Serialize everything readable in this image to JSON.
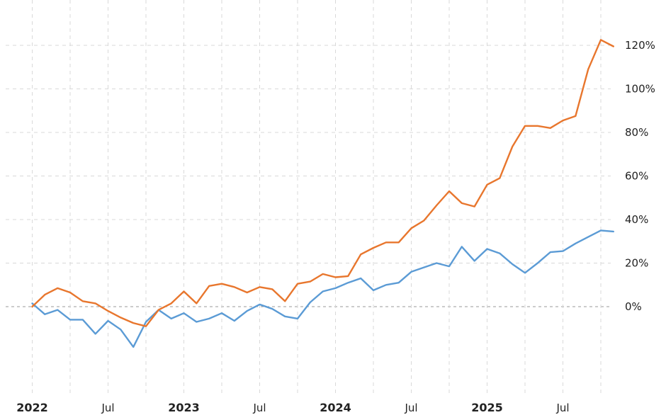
{
  "chart_data": {
    "type": "line",
    "title": "",
    "xlabel": "",
    "ylabel": "",
    "x": [
      "2022-01",
      "2022-02",
      "2022-03",
      "2022-04",
      "2022-05",
      "2022-06",
      "2022-07",
      "2022-08",
      "2022-09",
      "2022-10",
      "2022-11",
      "2022-12",
      "2023-01",
      "2023-02",
      "2023-03",
      "2023-04",
      "2023-05",
      "2023-06",
      "2023-07",
      "2023-08",
      "2023-09",
      "2023-10",
      "2023-11",
      "2023-12",
      "2024-01",
      "2024-02",
      "2024-03",
      "2024-04",
      "2024-05",
      "2024-06",
      "2024-07",
      "2024-08",
      "2024-09",
      "2024-10",
      "2024-11",
      "2024-12",
      "2025-01",
      "2025-02",
      "2025-03",
      "2025-04",
      "2025-05",
      "2025-06",
      "2025-07",
      "2025-08",
      "2025-09",
      "2025-10",
      "2025-11"
    ],
    "series": [
      {
        "color": "#e8762d",
        "values": [
          0,
          5.5,
          8.5,
          6.5,
          2.5,
          1.5,
          -2,
          -5,
          -7.5,
          -9,
          -1.5,
          1.5,
          7,
          1.5,
          9.5,
          10.5,
          9,
          6.5,
          9,
          8,
          2.5,
          10.5,
          11.5,
          15,
          13.5,
          14,
          24,
          27,
          29.5,
          29.5,
          36,
          39.5,
          46.5,
          53,
          47.5,
          46,
          56,
          59,
          73.5,
          83,
          83,
          82,
          85.5,
          87.5,
          109,
          122.5,
          119.5
        ]
      },
      {
        "color": "#5b9bd5",
        "values": [
          1.5,
          -3.5,
          -1.5,
          -6,
          -6,
          -12.5,
          -6.5,
          -10.5,
          -18.5,
          -7,
          -1.5,
          -5.5,
          -3,
          -7,
          -5.5,
          -3,
          -6.5,
          -2,
          1,
          -1,
          -4.5,
          -5.5,
          2,
          7,
          8.5,
          11,
          13,
          7.5,
          10,
          11,
          16,
          18,
          20,
          18.5,
          27.5,
          21,
          26.5,
          24.5,
          19.5,
          15.5,
          20,
          25,
          25.5,
          29,
          32,
          35,
          34.5
        ]
      }
    ],
    "ylim": [
      -20,
      130
    ],
    "yticks": [
      0,
      20,
      40,
      60,
      80,
      100,
      120
    ],
    "ytick_labels": [
      "0%",
      "20%",
      "40%",
      "60%",
      "80%",
      "100%",
      "120%"
    ],
    "xticks": [
      {
        "at": "2022-01",
        "label": "2022",
        "major": true
      },
      {
        "at": "2022-07",
        "label": "Jul",
        "major": false
      },
      {
        "at": "2023-01",
        "label": "2023",
        "major": true
      },
      {
        "at": "2023-07",
        "label": "Jul",
        "major": false
      },
      {
        "at": "2024-01",
        "label": "2024",
        "major": true
      },
      {
        "at": "2024-07",
        "label": "Jul",
        "major": false
      },
      {
        "at": "2025-01",
        "label": "2025",
        "major": true
      },
      {
        "at": "2025-07",
        "label": "Jul",
        "major": false
      }
    ],
    "grid": true,
    "y_axis_position": "right"
  }
}
